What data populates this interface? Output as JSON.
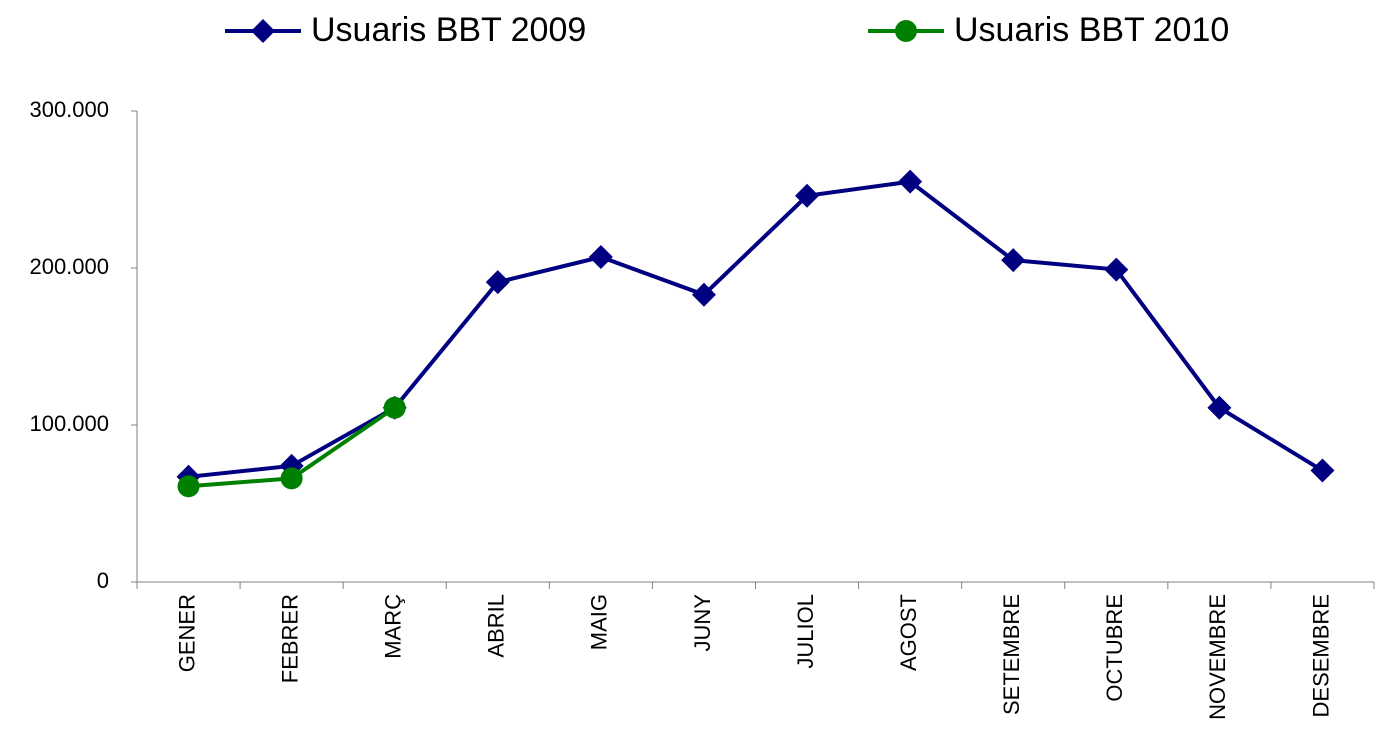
{
  "chart_data": {
    "type": "line",
    "categories": [
      "GENER",
      "FEBRER",
      "MARÇ",
      "ABRIL",
      "MAIG",
      "JUNY",
      "JULIOL",
      "AGOST",
      "SETEMBRE",
      "OCTUBRE",
      "NOVEMBRE",
      "DESEMBRE"
    ],
    "series": [
      {
        "name": "Usuaris BBT 2009",
        "color": "#000080",
        "marker": "diamond",
        "values": [
          67000,
          74000,
          111000,
          191000,
          207000,
          183000,
          246000,
          255000,
          205000,
          199000,
          111000,
          71000
        ]
      },
      {
        "name": "Usuaris BBT 2010",
        "color": "#008000",
        "marker": "circle",
        "values": [
          61000,
          66000,
          111000,
          null,
          null,
          null,
          null,
          null,
          null,
          null,
          null,
          null
        ]
      }
    ],
    "ylim": [
      0,
      300000
    ],
    "yticks": [
      0,
      {
        "value": 100000,
        "label": "100.000"
      },
      {
        "value": 200000,
        "label": "200.000"
      },
      {
        "value": 300000,
        "label": "300.000"
      }
    ],
    "legend": "top"
  }
}
